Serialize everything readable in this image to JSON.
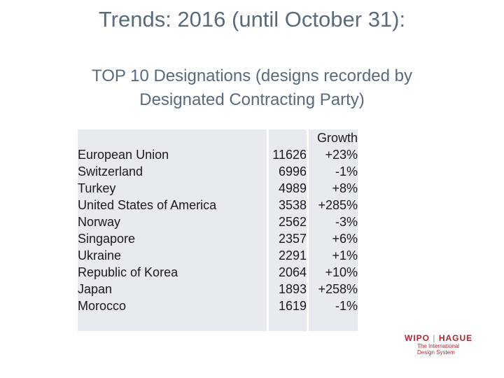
{
  "slide": {
    "title": "Trends: 2016 (until October 31):",
    "subtitle_line1": "TOP 10 Designations (designs recorded by",
    "subtitle_line2": "Designated Contracting Party)"
  },
  "table": {
    "growth_header": "Growth",
    "rows": [
      {
        "party": "European Union",
        "count": "11626",
        "growth": "+23%"
      },
      {
        "party": "Switzerland",
        "count": "6996",
        "growth": "-1%"
      },
      {
        "party": "Turkey",
        "count": "4989",
        "growth": "+8%"
      },
      {
        "party": "United States of America",
        "count": "3538",
        "growth": "+285%"
      },
      {
        "party": "Norway",
        "count": "2562",
        "growth": "-3%"
      },
      {
        "party": "Singapore",
        "count": "2357",
        "growth": "+6%"
      },
      {
        "party": "Ukraine",
        "count": "2291",
        "growth": "+1%"
      },
      {
        "party": "Republic of Korea",
        "count": "2064",
        "growth": "+10%"
      },
      {
        "party": "Japan",
        "count": "1893",
        "growth": "+258%"
      },
      {
        "party": "Morocco",
        "count": "1619",
        "growth": "-1%"
      }
    ]
  },
  "logo": {
    "wipo": "WIPO",
    "separator": "|",
    "hague": "HAGUE",
    "sub_line1": "The International",
    "sub_line2": "Design System"
  },
  "colors": {
    "title": "#596a7d",
    "table_bg": "#e7ebf0",
    "logo_red": "#b32432"
  }
}
